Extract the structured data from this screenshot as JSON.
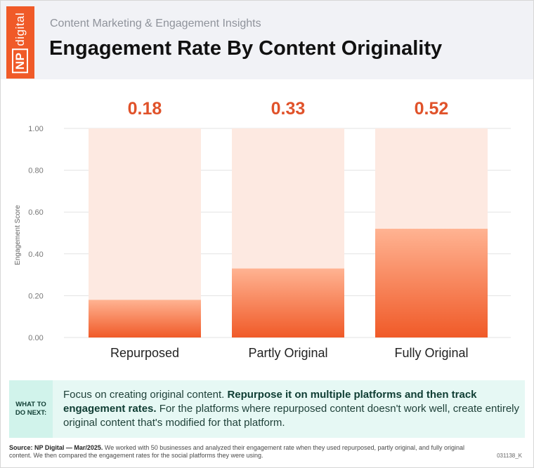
{
  "header": {
    "logo": "NP digital",
    "subtitle": "Content Marketing & Engagement Insights",
    "title": "Engagement Rate By Content Originality"
  },
  "chart_data": {
    "type": "bar",
    "categories": [
      "Repurposed",
      "Partly Original",
      "Fully Original"
    ],
    "values": [
      0.18,
      0.33,
      0.52
    ],
    "value_labels": [
      "0.18",
      "0.33",
      "0.52"
    ],
    "ylabel": "Engagement Score",
    "ylim": [
      0,
      1
    ],
    "yticks": [
      "0.00",
      "0.20",
      "0.40",
      "0.60",
      "0.80",
      "1.00"
    ],
    "grid": true,
    "colors": {
      "bar": "#f26a3a",
      "bar_light": "#ffb392",
      "track": "#fde9e1",
      "value_label": "#e0522a"
    }
  },
  "next_steps": {
    "label_line1": "WHAT TO",
    "label_line2": "DO NEXT:",
    "text_part1": "Focus on creating original content. ",
    "text_bold": "Repurpose it on multiple platforms and then track engagement rates.",
    "text_part2": " For the platforms where repurposed content doesn't work well, create entirely original content that's modified for that platform."
  },
  "footer": {
    "source_label": "Source: NP Digital — Mar/2025.",
    "source_text": " We worked with 50 businesses and analyzed their engagement rate when they used repurposed, partly original, and fully original content. We then compared the engagement rates for the social platforms they were using.",
    "code": "031138_K"
  }
}
